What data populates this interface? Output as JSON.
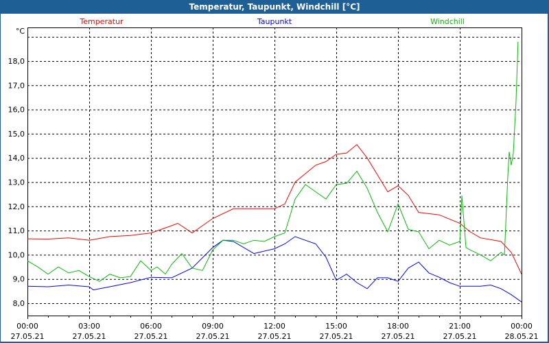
{
  "window": {
    "title": "Temperatur, Taupunkt, Windchill [°C]"
  },
  "chart_data": {
    "type": "line",
    "title": "Temperatur, Taupunkt, Windchill [°C]",
    "ylabel": "°C",
    "xlabel": "",
    "xlim_hours": [
      0,
      24
    ],
    "ylim": [
      7.5,
      19.4
    ],
    "grid": true,
    "legend_placement": "top",
    "y_ticks": [
      8,
      9,
      10,
      11,
      12,
      13,
      14,
      15,
      16,
      17,
      18
    ],
    "y_tick_labels": [
      "8,0",
      "9,0",
      "10,0",
      "11,0",
      "12,0",
      "13,0",
      "14,0",
      "15,0",
      "16,0",
      "17,0",
      "18,0"
    ],
    "x_ticks_hours": [
      0,
      3,
      6,
      9,
      12,
      15,
      18,
      21,
      24
    ],
    "x_tick_labels": [
      {
        "time": "00:00",
        "date": "27.05.21"
      },
      {
        "time": "03:00",
        "date": "27.05.21"
      },
      {
        "time": "06:00",
        "date": "27.05.21"
      },
      {
        "time": "09:00",
        "date": "27.05.21"
      },
      {
        "time": "12:00",
        "date": "27.05.21"
      },
      {
        "time": "15:00",
        "date": "27.05.21"
      },
      {
        "time": "18:00",
        "date": "27.05.21"
      },
      {
        "time": "21:00",
        "date": "27.05.21"
      },
      {
        "time": "00:00",
        "date": "28.05.21"
      }
    ],
    "series": [
      {
        "name": "Temperatur",
        "color": "#ff0000",
        "x": [
          0,
          1,
          2,
          3,
          4,
          5,
          6,
          7,
          7.3,
          8,
          8.5,
          9,
          10,
          11,
          12,
          12.5,
          13,
          14,
          14.5,
          15,
          15.5,
          16,
          16.5,
          17,
          17.5,
          18,
          18.5,
          19,
          20,
          21,
          21.5,
          22,
          23,
          23.5,
          24
        ],
        "values": [
          10.66,
          10.65,
          10.7,
          10.6,
          10.75,
          10.8,
          10.9,
          11.2,
          11.3,
          10.9,
          11.2,
          11.5,
          11.9,
          11.9,
          11.9,
          12.1,
          13.0,
          13.7,
          13.85,
          14.15,
          14.2,
          14.55,
          14.0,
          13.3,
          12.6,
          12.85,
          12.45,
          11.75,
          11.65,
          11.3,
          10.95,
          10.7,
          10.55,
          10.1,
          9.2
        ]
      },
      {
        "name": "Taupunkt",
        "color": "#0000ff",
        "x": [
          0,
          1,
          2,
          3,
          3.2,
          4,
          5,
          6,
          7,
          8,
          9,
          9.5,
          10,
          11,
          12,
          12.5,
          13,
          14,
          14.5,
          15,
          15.5,
          16,
          16.5,
          17,
          17.5,
          18,
          18.5,
          19,
          19.5,
          20,
          20.5,
          21,
          22,
          22.5,
          23,
          23.5,
          24
        ],
        "values": [
          8.7,
          8.68,
          8.75,
          8.68,
          8.55,
          8.68,
          8.85,
          9.07,
          9.05,
          9.45,
          10.3,
          10.6,
          10.55,
          10.05,
          10.25,
          10.45,
          10.75,
          10.45,
          9.9,
          8.95,
          9.2,
          8.85,
          8.6,
          9.05,
          9.05,
          8.9,
          9.45,
          9.7,
          9.25,
          9.07,
          8.85,
          8.7,
          8.7,
          8.75,
          8.6,
          8.35,
          8.05
        ]
      },
      {
        "name": "Windchill",
        "color": "#00c000",
        "x": [
          0,
          0.5,
          1,
          1.5,
          2,
          2.5,
          3,
          3.5,
          4,
          4.5,
          5,
          5.5,
          6,
          6.3,
          6.7,
          7,
          7.5,
          8,
          8.5,
          9,
          9.5,
          10,
          10.5,
          11,
          11.5,
          12,
          12.5,
          13,
          13.5,
          14,
          14.5,
          15,
          15.5,
          16,
          16.5,
          17,
          17.5,
          18,
          18.5,
          19,
          19.5,
          20,
          20.5,
          21,
          21.1,
          21.3,
          21.5,
          22,
          22.5,
          23,
          23.17,
          23.33,
          23.4,
          23.5,
          23.6,
          23.73,
          23.83
        ],
        "values": [
          9.75,
          9.5,
          9.2,
          9.5,
          9.25,
          9.35,
          9.1,
          8.9,
          9.2,
          9.05,
          9.1,
          9.75,
          9.35,
          9.5,
          9.2,
          9.6,
          10.05,
          9.45,
          9.35,
          10.2,
          10.6,
          10.6,
          10.45,
          10.6,
          10.55,
          10.75,
          10.9,
          12.3,
          12.9,
          12.6,
          12.3,
          12.9,
          12.95,
          13.45,
          12.75,
          11.75,
          10.95,
          12.1,
          11.05,
          10.95,
          10.25,
          10.6,
          10.4,
          10.55,
          12.45,
          10.3,
          10.2,
          10.0,
          9.75,
          10.1,
          10.0,
          13.2,
          14.25,
          13.7,
          14.2,
          16.3,
          18.8
        ]
      }
    ]
  }
}
